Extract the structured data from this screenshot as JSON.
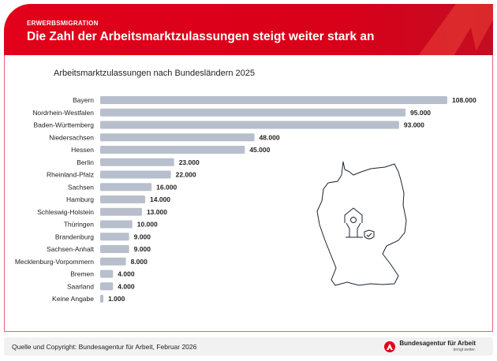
{
  "header": {
    "kicker": "ERWERBSMIGRATION",
    "title": "Die Zahl der Arbeitsmarktzulassungen steigt weiter stark an"
  },
  "footer": {
    "source": "Quelle und Copyright: Bundesagentur für Arbeit, Februar 2026",
    "logo_name": "Bundesagentur für Arbeit",
    "logo_tagline": "bringt weiter."
  },
  "colors": {
    "brand_red": "#e2001a",
    "bar": "#b8bfcc"
  },
  "chart_data": {
    "type": "bar",
    "orientation": "horizontal",
    "title": "Arbeitsmarktzulassungen nach Bundesländern 2025",
    "categories": [
      "Bayern",
      "Nordrhein-Westfalen",
      "Baden-Württemberg",
      "Niedersachsen",
      "Hessen",
      "Berlin",
      "Rheinland-Pfalz",
      "Sachsen",
      "Hamburg",
      "Schleswig-Holstein",
      "Thüringen",
      "Brandenburg",
      "Sachsen-Anhalt",
      "Mecklenburg-Vorpommern",
      "Bremen",
      "Saarland",
      "Keine Angabe"
    ],
    "values": [
      108000,
      95000,
      93000,
      48000,
      45000,
      23000,
      22000,
      16000,
      14000,
      13000,
      10000,
      9000,
      9000,
      8000,
      4000,
      4000,
      1000
    ],
    "labels": [
      "108.000",
      "95.000",
      "93.000",
      "48.000",
      "45.000",
      "23.000",
      "22.000",
      "16.000",
      "14.000",
      "13.000",
      "10.000",
      "9.000",
      "9.000",
      "8.000",
      "4.000",
      "4.000",
      "1.000"
    ],
    "xlim": [
      0,
      108000
    ],
    "grid": false
  },
  "map": {
    "icon": "germany-map-with-house-person-shield-icon"
  }
}
